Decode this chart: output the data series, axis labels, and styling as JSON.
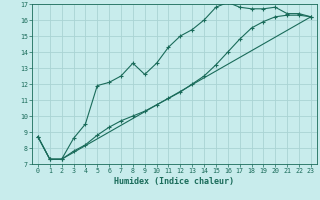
{
  "title": "",
  "xlabel": "Humidex (Indice chaleur)",
  "ylabel": "",
  "bg_color": "#c8ecec",
  "grid_color": "#aad4d4",
  "line_color": "#1a6b5a",
  "xlim": [
    -0.5,
    23.5
  ],
  "ylim": [
    7,
    17
  ],
  "xticks": [
    0,
    1,
    2,
    3,
    4,
    5,
    6,
    7,
    8,
    9,
    10,
    11,
    12,
    13,
    14,
    15,
    16,
    17,
    18,
    19,
    20,
    21,
    22,
    23
  ],
  "yticks": [
    7,
    8,
    9,
    10,
    11,
    12,
    13,
    14,
    15,
    16,
    17
  ],
  "line1_x": [
    0,
    1,
    2,
    3,
    4,
    5,
    6,
    7,
    8,
    9,
    10,
    11,
    12,
    13,
    14,
    15,
    16,
    17,
    18,
    19,
    20,
    21,
    22,
    23
  ],
  "line1_y": [
    8.7,
    7.3,
    7.3,
    8.6,
    9.5,
    11.9,
    12.1,
    12.5,
    13.3,
    12.6,
    13.3,
    14.3,
    15.0,
    15.4,
    16.0,
    16.8,
    17.1,
    16.8,
    16.7,
    16.7,
    16.8,
    16.4,
    16.4,
    16.2
  ],
  "line2_x": [
    0,
    1,
    2,
    3,
    4,
    5,
    6,
    7,
    8,
    9,
    10,
    11,
    12,
    13,
    14,
    15,
    16,
    17,
    18,
    19,
    20,
    21,
    22,
    23
  ],
  "line2_y": [
    8.7,
    7.3,
    7.3,
    7.8,
    8.2,
    8.8,
    9.3,
    9.7,
    10.0,
    10.3,
    10.7,
    11.1,
    11.5,
    12.0,
    12.5,
    13.2,
    14.0,
    14.8,
    15.5,
    15.9,
    16.2,
    16.3,
    16.3,
    16.2
  ],
  "line3_x": [
    0,
    1,
    2,
    23
  ],
  "line3_y": [
    8.7,
    7.3,
    7.3,
    16.2
  ],
  "xlabel_fontsize": 6.0,
  "tick_fontsize": 4.8
}
